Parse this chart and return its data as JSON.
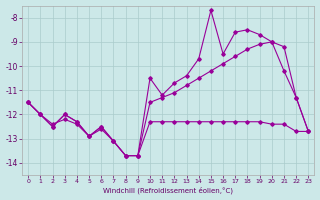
{
  "xlabel": "Windchill (Refroidissement éolien,°C)",
  "x_values": [
    0,
    1,
    2,
    3,
    4,
    5,
    6,
    7,
    8,
    9,
    10,
    11,
    12,
    13,
    14,
    15,
    16,
    17,
    18,
    19,
    20,
    21,
    22,
    23
  ],
  "line1_y": [
    -11.5,
    -12.0,
    -12.5,
    -12.0,
    -12.3,
    -12.9,
    -12.5,
    -13.1,
    -13.7,
    -13.7,
    -10.5,
    -11.2,
    -10.7,
    -10.4,
    -9.7,
    -7.7,
    -9.5,
    -8.6,
    -8.5,
    -8.7,
    -9.0,
    -10.2,
    -11.3,
    -12.7
  ],
  "line2_y": [
    -11.5,
    -12.0,
    -12.5,
    -12.0,
    -12.3,
    -12.9,
    -12.5,
    -13.1,
    -13.7,
    -13.7,
    -11.5,
    -11.3,
    -11.1,
    -10.8,
    -10.5,
    -10.2,
    -9.9,
    -9.6,
    -9.3,
    -9.1,
    -9.0,
    -9.2,
    -11.3,
    -12.7
  ],
  "line3_y": [
    -11.5,
    -12.0,
    -12.4,
    -12.2,
    -12.4,
    -12.9,
    -12.6,
    -13.1,
    -13.7,
    -13.7,
    -12.3,
    -12.3,
    -12.3,
    -12.3,
    -12.3,
    -12.3,
    -12.3,
    -12.3,
    -12.3,
    -12.3,
    -12.4,
    -12.4,
    -12.7,
    -12.7
  ],
  "line_color": "#990099",
  "bg_color": "#cce8e8",
  "grid_color": "#aacccc",
  "ylim": [
    -14.5,
    -7.5
  ],
  "xlim": [
    -0.5,
    23.5
  ],
  "yticks": [
    -14,
    -13,
    -12,
    -11,
    -10,
    -9,
    -8
  ],
  "xticks": [
    0,
    1,
    2,
    3,
    4,
    5,
    6,
    7,
    8,
    9,
    10,
    11,
    12,
    13,
    14,
    15,
    16,
    17,
    18,
    19,
    20,
    21,
    22,
    23
  ]
}
